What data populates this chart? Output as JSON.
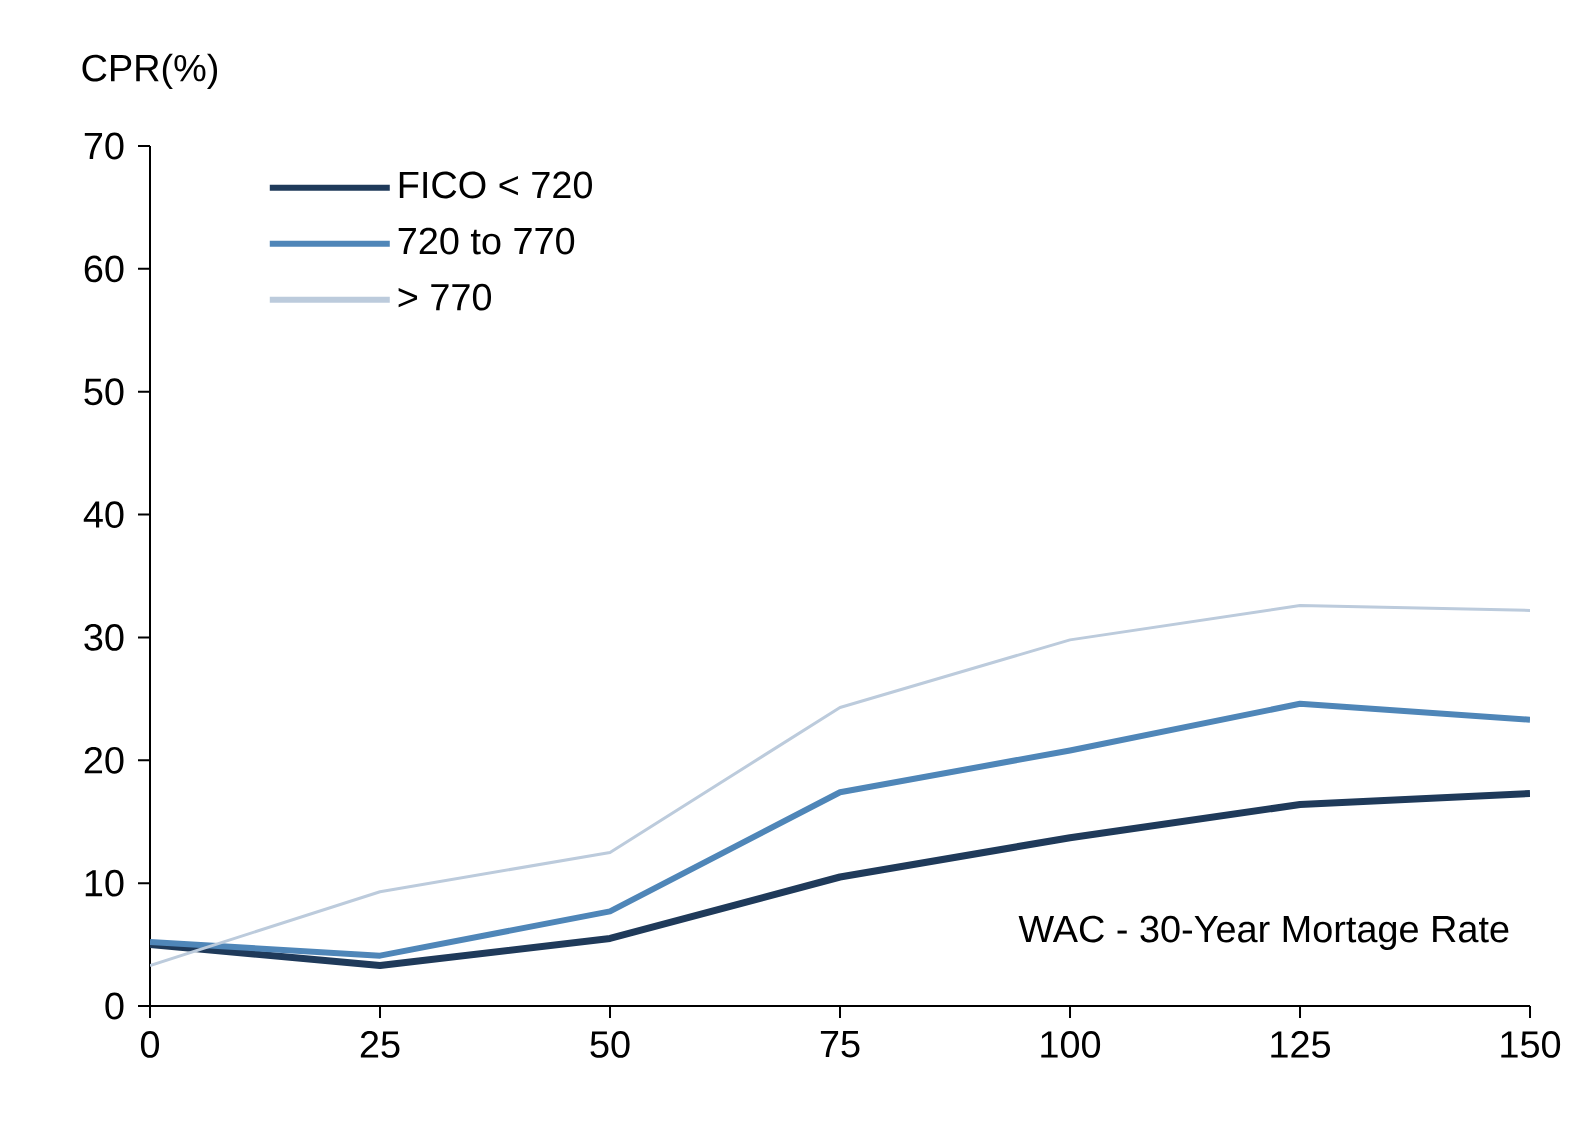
{
  "chart_data": {
    "type": "line",
    "ylabel": "CPR(%)",
    "annotations": [
      "WAC - 30-Year Mortage Rate"
    ],
    "x": [
      0,
      25,
      50,
      75,
      100,
      125,
      150
    ],
    "series": [
      {
        "name": "FICO < 720",
        "color": "#1f3a5a",
        "values": [
          5.0,
          3.3,
          5.5,
          10.5,
          13.7,
          16.4,
          17.3
        ]
      },
      {
        "name": "720 to 770",
        "color": "#4f86b8",
        "values": [
          5.2,
          4.1,
          7.7,
          17.4,
          20.8,
          24.6,
          23.3
        ]
      },
      {
        "name": "> 770",
        "color": "#bccbdc",
        "values": [
          3.3,
          9.3,
          12.5,
          24.3,
          29.8,
          32.6,
          32.2
        ]
      }
    ],
    "xlim": [
      0,
      150
    ],
    "ylim": [
      0,
      70
    ],
    "xticks": [
      0,
      25,
      50,
      75,
      100,
      125,
      150
    ],
    "yticks": [
      0,
      10,
      20,
      30,
      40,
      50,
      60,
      70
    ],
    "grid": false,
    "legend": "top left",
    "marker": "none",
    "line_style": "solid"
  }
}
